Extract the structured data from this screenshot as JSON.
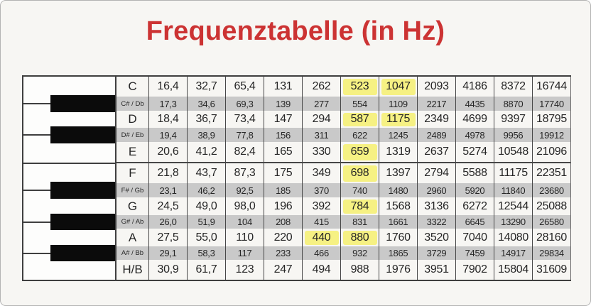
{
  "title": "Frequenztabelle (in Hz)",
  "colors": {
    "accent": "#cc3333",
    "stripe": "#c9c9c9",
    "highlight": "#f6f183",
    "background": "#f7f6f3",
    "line": "#3f3f3f"
  },
  "table": {
    "rows": [
      {
        "note": "C",
        "key": "white",
        "values": [
          "16,4",
          "32,7",
          "65,4",
          "131",
          "262",
          "523",
          "1047",
          "2093",
          "4186",
          "8372",
          "16744"
        ],
        "highlight": [
          5,
          6
        ]
      },
      {
        "note": "C# / Db",
        "key": "black",
        "values": [
          "17,3",
          "34,6",
          "69,3",
          "139",
          "277",
          "554",
          "1109",
          "2217",
          "4435",
          "8870",
          "17740"
        ],
        "highlight": []
      },
      {
        "note": "D",
        "key": "white",
        "values": [
          "18,4",
          "36,7",
          "73,4",
          "147",
          "294",
          "587",
          "1175",
          "2349",
          "4699",
          "9397",
          "18795"
        ],
        "highlight": [
          5,
          6
        ]
      },
      {
        "note": "D# / Eb",
        "key": "black",
        "values": [
          "19,4",
          "38,9",
          "77,8",
          "156",
          "311",
          "622",
          "1245",
          "2489",
          "4978",
          "9956",
          "19912"
        ],
        "highlight": []
      },
      {
        "note": "E",
        "key": "white",
        "values": [
          "20,6",
          "41,2",
          "82,4",
          "165",
          "330",
          "659",
          "1319",
          "2637",
          "5274",
          "10548",
          "21096"
        ],
        "highlight": [
          5
        ]
      },
      {
        "note": "F",
        "key": "white",
        "values": [
          "21,8",
          "43,7",
          "87,3",
          "175",
          "349",
          "698",
          "1397",
          "2794",
          "5588",
          "11175",
          "22351"
        ],
        "highlight": [
          5
        ]
      },
      {
        "note": "F# / Gb",
        "key": "black",
        "values": [
          "23,1",
          "46,2",
          "92,5",
          "185",
          "370",
          "740",
          "1480",
          "2960",
          "5920",
          "11840",
          "23680"
        ],
        "highlight": []
      },
      {
        "note": "G",
        "key": "white",
        "values": [
          "24,5",
          "49,0",
          "98,0",
          "196",
          "392",
          "784",
          "1568",
          "3136",
          "6272",
          "12544",
          "25088"
        ],
        "highlight": [
          5
        ]
      },
      {
        "note": "G# / Ab",
        "key": "black",
        "values": [
          "26,0",
          "51,9",
          "104",
          "208",
          "415",
          "831",
          "1661",
          "3322",
          "6645",
          "13290",
          "26580"
        ],
        "highlight": []
      },
      {
        "note": "A",
        "key": "white",
        "values": [
          "27,5",
          "55,0",
          "110",
          "220",
          "440",
          "880",
          "1760",
          "3520",
          "7040",
          "14080",
          "28160"
        ],
        "highlight": [
          4,
          5
        ]
      },
      {
        "note": "A# / Bb",
        "key": "black",
        "values": [
          "29,1",
          "58,3",
          "117",
          "233",
          "466",
          "932",
          "1865",
          "3729",
          "7459",
          "14917",
          "29834"
        ],
        "highlight": []
      },
      {
        "note": "H/B",
        "key": "white",
        "values": [
          "30,9",
          "61,7",
          "123",
          "247",
          "494",
          "988",
          "1976",
          "3951",
          "7902",
          "15804",
          "31609"
        ],
        "highlight": []
      }
    ]
  }
}
